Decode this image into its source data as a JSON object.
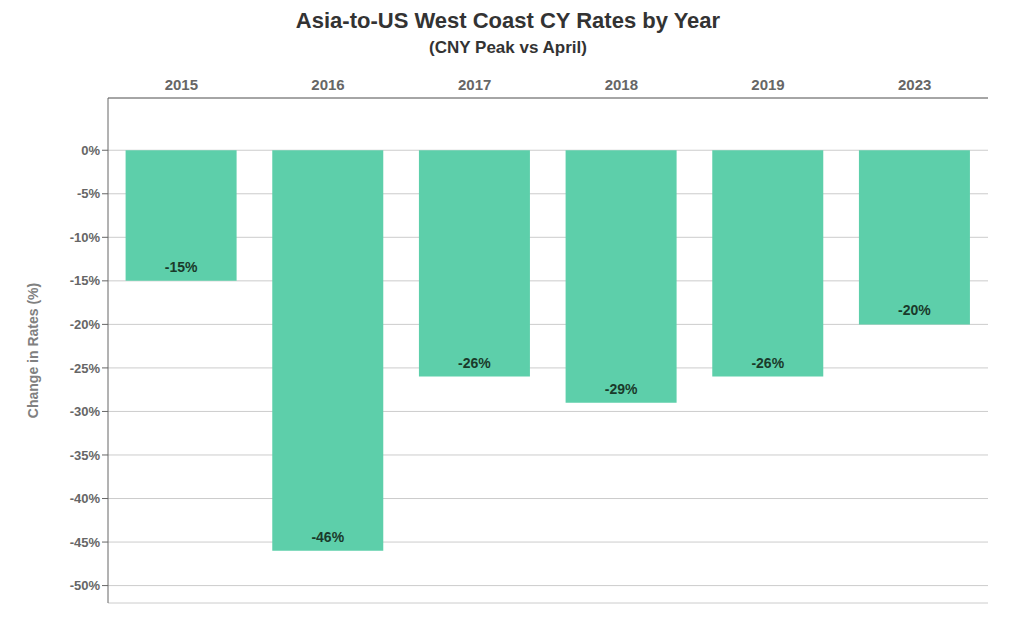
{
  "chart_data": {
    "type": "bar",
    "title": "Asia-to-US West Coast CY Rates by Year",
    "subtitle": "(CNY Peak vs April)",
    "y_label": "Change in Rates (%)",
    "categories": [
      "2015",
      "2016",
      "2017",
      "2018",
      "2019",
      "2023"
    ],
    "values": [
      -15,
      -46,
      -26,
      -29,
      -26,
      -20
    ],
    "value_labels": [
      "-15%",
      "-46%",
      "-26%",
      "-29%",
      "-26%",
      "-20%"
    ],
    "data_labels": true,
    "color": "#5dcfaa",
    "ylim": [
      -52,
      6
    ],
    "yticks": [
      {
        "value": 0,
        "label": "0%"
      },
      {
        "value": -5,
        "label": "-5%"
      },
      {
        "value": -10,
        "label": "-10%"
      },
      {
        "value": -15,
        "label": "-15%"
      },
      {
        "value": -20,
        "label": "-20%"
      },
      {
        "value": -25,
        "label": "-25%"
      },
      {
        "value": -30,
        "label": "-30%"
      },
      {
        "value": -35,
        "label": "-35%"
      },
      {
        "value": -40,
        "label": "-40%"
      },
      {
        "value": -45,
        "label": "-45%"
      },
      {
        "value": -50,
        "label": "-50%"
      }
    ],
    "grid": true
  }
}
